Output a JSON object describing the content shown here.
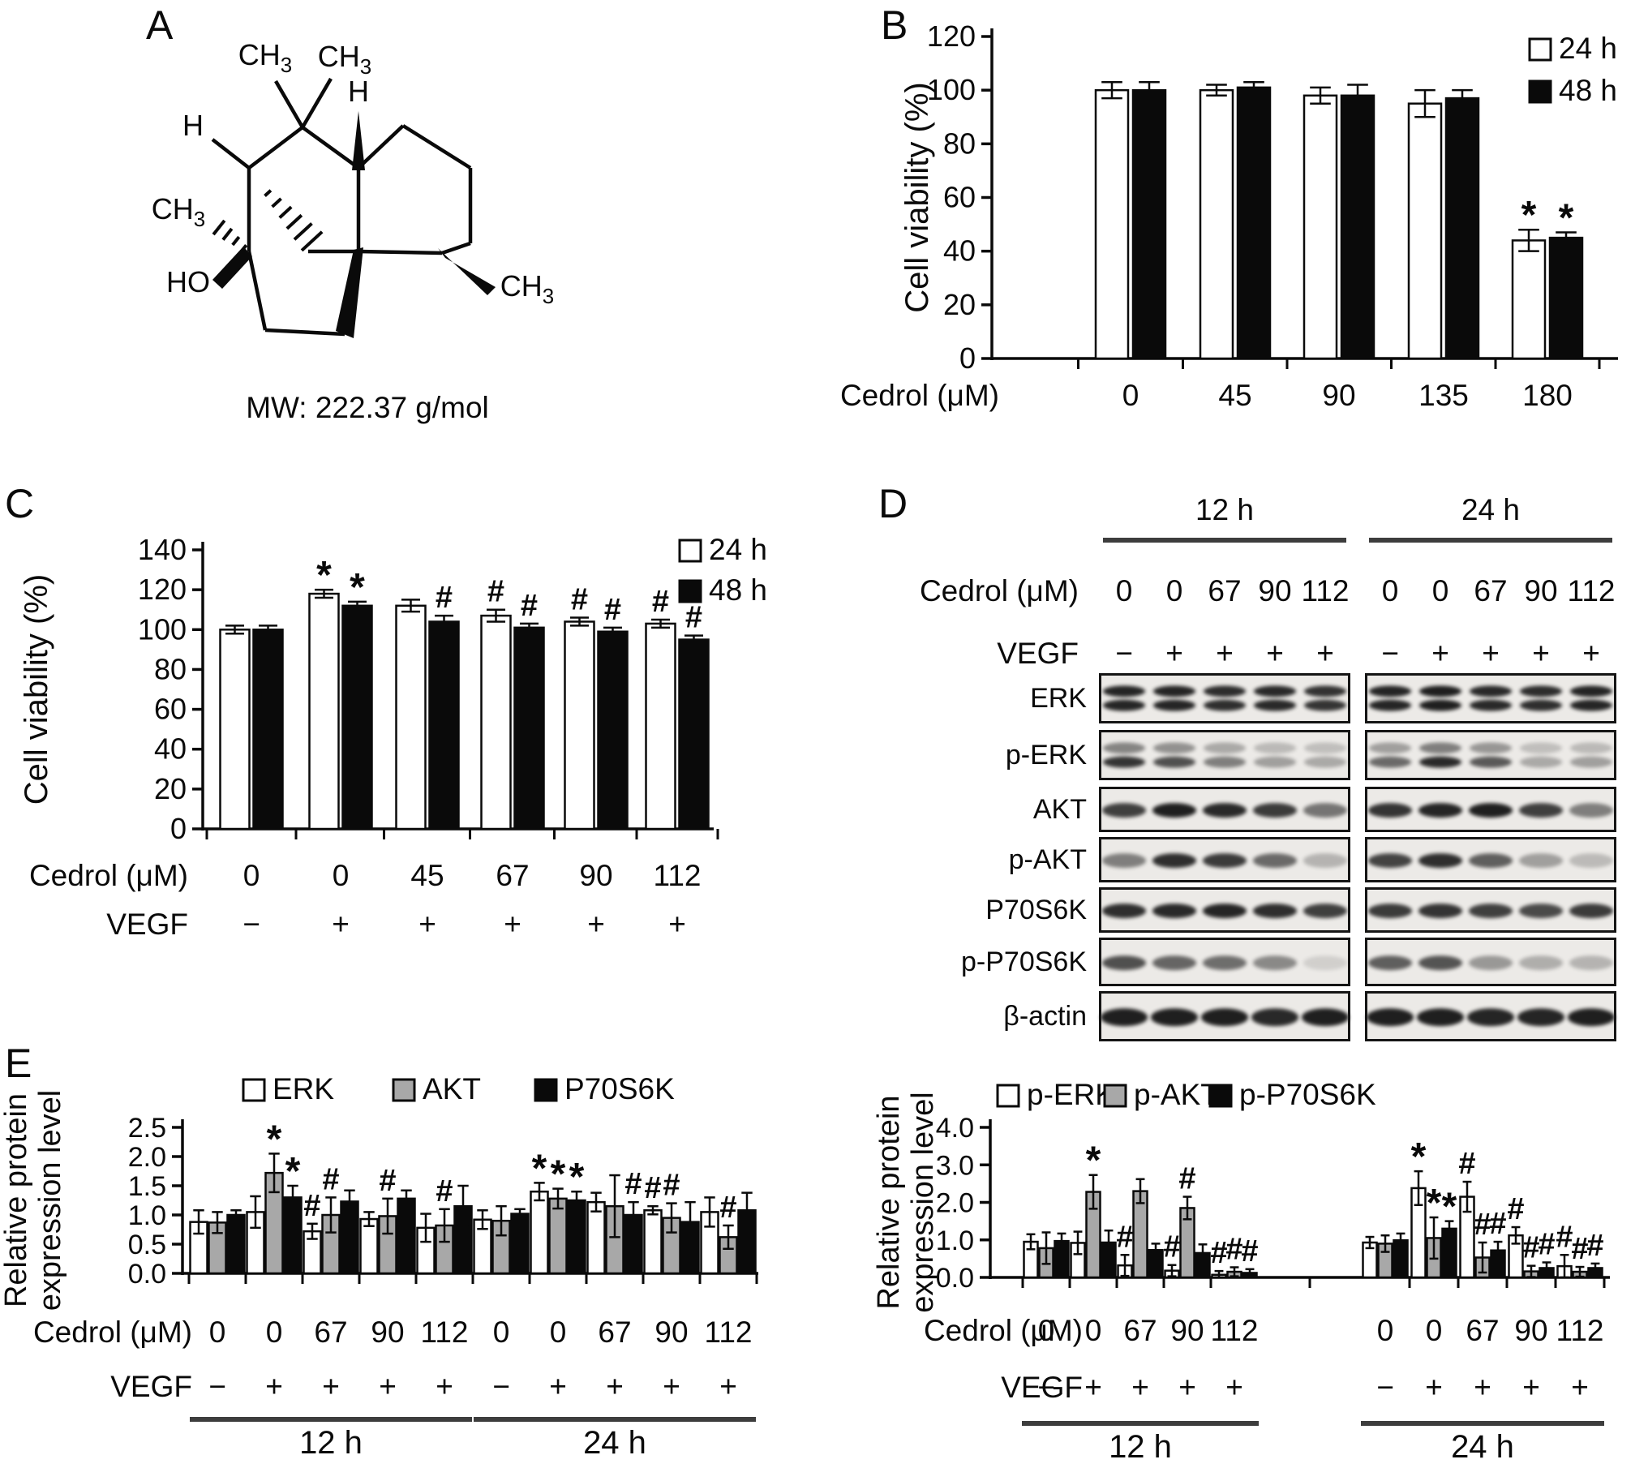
{
  "panel_labels": {
    "a": "A",
    "b": "B",
    "c": "C",
    "d": "D",
    "e": "E"
  },
  "panel_a": {
    "mw_text": "MW: 222.37 g/mol",
    "atom_labels": {
      "ch3_top_left": "CH3",
      "ch3_top_right": "CH3",
      "h_top": "H",
      "h_left": "H",
      "ch3_left": "CH3",
      "ho": "HO",
      "ch3_right": "CH3"
    }
  },
  "panel_d": {
    "time_headers": [
      "12 h",
      "24 h"
    ],
    "rows": [
      {
        "title": "Cedrol (μM)",
        "labels": [
          "0",
          "0",
          "67",
          "90",
          "112",
          "0",
          "0",
          "67",
          "90",
          "112"
        ]
      },
      {
        "title": "VEGF",
        "labels": [
          "−",
          "+",
          "+",
          "+",
          "+",
          "−",
          "+",
          "+",
          "+",
          "+"
        ]
      }
    ],
    "blots": [
      {
        "label": "ERK",
        "style": "double",
        "upper_scale": 0.95,
        "lanes": [
          [
            0.92,
            0.92,
            0.88,
            0.9,
            0.85
          ],
          [
            0.92,
            0.95,
            0.9,
            0.88,
            0.92
          ]
        ]
      },
      {
        "label": "p-ERK",
        "style": "double",
        "upper_scale": 0.5,
        "lanes": [
          [
            0.85,
            0.72,
            0.5,
            0.35,
            0.3
          ],
          [
            0.6,
            0.9,
            0.68,
            0.3,
            0.35
          ]
        ]
      },
      {
        "label": "AKT",
        "style": "single",
        "lanes": [
          [
            0.8,
            0.95,
            0.9,
            0.82,
            0.55
          ],
          [
            0.85,
            0.92,
            0.95,
            0.8,
            0.5
          ]
        ]
      },
      {
        "label": "p-AKT",
        "style": "single",
        "lanes": [
          [
            0.5,
            0.88,
            0.82,
            0.6,
            0.25
          ],
          [
            0.78,
            0.88,
            0.65,
            0.35,
            0.22
          ]
        ]
      },
      {
        "label": "P70S6K",
        "style": "single",
        "lanes": [
          [
            0.88,
            0.9,
            0.92,
            0.88,
            0.8
          ],
          [
            0.82,
            0.85,
            0.8,
            0.75,
            0.82
          ]
        ]
      },
      {
        "label": "p-P70S6K",
        "style": "single",
        "lanes": [
          [
            0.72,
            0.62,
            0.58,
            0.45,
            0.12
          ],
          [
            0.65,
            0.7,
            0.38,
            0.28,
            0.25
          ]
        ]
      },
      {
        "label": "β-actin",
        "style": "single",
        "thick": true,
        "lanes": [
          [
            0.95,
            0.95,
            0.95,
            0.9,
            0.95
          ],
          [
            0.95,
            0.95,
            0.92,
            0.92,
            0.95
          ]
        ]
      }
    ]
  },
  "chart_data": [
    {
      "id": "cell-viability-dose",
      "type": "bar",
      "title": "",
      "ylabel": "Cell viability (%)",
      "ylim": [
        0,
        120
      ],
      "yticks": [
        "0",
        "20",
        "40",
        "60",
        "80",
        "100",
        "120"
      ],
      "categories": [
        "0",
        "45",
        "90",
        "135",
        "180"
      ],
      "series": [
        {
          "name": "24 h",
          "color": "#ffffff"
        },
        {
          "name": "48 h",
          "color": "#0a0a0a"
        }
      ],
      "values": [
        [
          100,
          100,
          98,
          95,
          44
        ],
        [
          100,
          101,
          98,
          97,
          45
        ]
      ],
      "errors": [
        [
          3,
          2,
          3,
          5,
          4
        ],
        [
          3,
          2,
          4,
          3,
          2
        ]
      ],
      "symbols": [
        [
          "",
          "",
          "",
          "",
          "*"
        ],
        [
          "",
          "",
          "",
          "",
          "*"
        ]
      ],
      "rows": [
        {
          "title": "Cedrol (μM)",
          "labels": [
            "0",
            "45",
            "90",
            "135",
            "180"
          ]
        }
      ],
      "legend_position": "top-right"
    },
    {
      "id": "cell-viability-vegf",
      "type": "bar",
      "title": "",
      "ylabel": "Cell viability (%)",
      "ylim": [
        0,
        140
      ],
      "yticks": [
        "0",
        "20",
        "40",
        "60",
        "80",
        "100",
        "120",
        "140"
      ],
      "categories": [
        "0",
        "0",
        "45",
        "67",
        "90",
        "112"
      ],
      "series": [
        {
          "name": "24 h",
          "color": "#ffffff"
        },
        {
          "name": "48 h",
          "color": "#0a0a0a"
        }
      ],
      "values": [
        [
          100,
          118,
          112,
          107,
          104,
          103
        ],
        [
          100,
          112,
          104,
          101,
          99,
          95
        ]
      ],
      "errors": [
        [
          2,
          2,
          3,
          3,
          2,
          2
        ],
        [
          2,
          2,
          3,
          2,
          2,
          2
        ]
      ],
      "symbols": [
        [
          "",
          "*",
          "",
          "#",
          "#",
          "#"
        ],
        [
          "",
          "*",
          "#",
          "#",
          "#",
          "#"
        ]
      ],
      "rows": [
        {
          "title": "Cedrol (μM)",
          "labels": [
            "0",
            "0",
            "45",
            "67",
            "90",
            "112"
          ]
        },
        {
          "title": "VEGF",
          "labels": [
            "−",
            "+",
            "+",
            "+",
            "+",
            "+"
          ]
        }
      ],
      "legend_position": "top-right"
    },
    {
      "id": "total-protein-expression",
      "type": "bar",
      "title": "",
      "ylabel_lines": [
        "Relative protein",
        "expression level"
      ],
      "ylim": [
        0,
        2.5
      ],
      "yticks": [
        "0.0",
        "0.5",
        "1.0",
        "1.5",
        "2.0",
        "2.5"
      ],
      "categories": [
        "0",
        "0",
        "67",
        "90",
        "112",
        "0",
        "0",
        "67",
        "90",
        "112"
      ],
      "series": [
        {
          "name": "ERK",
          "color": "#ffffff"
        },
        {
          "name": "AKT",
          "color": "#a8a8a8"
        },
        {
          "name": "P70S6K",
          "color": "#0a0a0a"
        }
      ],
      "values": [
        [
          0.88,
          1.05,
          0.72,
          0.93,
          0.78,
          0.92,
          1.4,
          1.22,
          1.08,
          1.05
        ],
        [
          0.87,
          1.72,
          1.0,
          0.98,
          0.82,
          0.9,
          1.28,
          1.15,
          0.95,
          0.62
        ],
        [
          1.0,
          1.3,
          1.23,
          1.28,
          1.15,
          1.02,
          1.25,
          1.0,
          0.88,
          1.08
        ]
      ],
      "errors": [
        [
          0.2,
          0.27,
          0.13,
          0.12,
          0.24,
          0.16,
          0.15,
          0.16,
          0.07,
          0.25
        ],
        [
          0.18,
          0.33,
          0.3,
          0.3,
          0.28,
          0.25,
          0.17,
          0.53,
          0.25,
          0.2
        ],
        [
          0.08,
          0.2,
          0.19,
          0.14,
          0.35,
          0.08,
          0.15,
          0.22,
          0.34,
          0.3
        ]
      ],
      "symbols": [
        [
          "",
          "",
          "#",
          "",
          "",
          "",
          "*",
          "",
          "#",
          ""
        ],
        [
          "",
          "*",
          "#",
          "#",
          "#",
          "",
          "*",
          "",
          "#",
          "#"
        ],
        [
          "",
          "*",
          "",
          "",
          "",
          "",
          "*",
          "#",
          "",
          ""
        ]
      ],
      "rows": [
        {
          "title": "Cedrol (μM)",
          "labels": [
            "0",
            "0",
            "67",
            "90",
            "112",
            "0",
            "0",
            "67",
            "90",
            "112"
          ]
        },
        {
          "title": "VEGF",
          "labels": [
            "−",
            "+",
            "+",
            "+",
            "+",
            "−",
            "+",
            "+",
            "+",
            "+"
          ]
        }
      ],
      "spans": [
        {
          "label": "12 h",
          "from": 0,
          "to": 4
        },
        {
          "label": "24 h",
          "from": 5,
          "to": 9
        }
      ],
      "legend_position": "top-center"
    },
    {
      "id": "phospho-protein-expression",
      "type": "bar",
      "title": "",
      "ylabel_lines": [
        "Relative protein",
        "expression level"
      ],
      "ylim": [
        0,
        4
      ],
      "yticks": [
        "0.0",
        "1.0",
        "2.0",
        "3.0",
        "4.0"
      ],
      "categories": [
        "0",
        "0",
        "67",
        "90",
        "112",
        "0",
        "0",
        "67",
        "90",
        "112"
      ],
      "series": [
        {
          "name": "p-ERK",
          "color": "#ffffff"
        },
        {
          "name": "p-AKT",
          "color": "#a8a8a8"
        },
        {
          "name": "p-P70S6K",
          "color": "#0a0a0a"
        }
      ],
      "values": [
        [
          0.95,
          0.92,
          0.32,
          0.18,
          0.07,
          0.93,
          2.38,
          2.15,
          1.12,
          0.3
        ],
        [
          0.78,
          2.28,
          2.3,
          1.85,
          0.15,
          0.9,
          1.05,
          0.53,
          0.16,
          0.15
        ],
        [
          0.97,
          0.93,
          0.73,
          0.65,
          0.12,
          0.99,
          1.3,
          0.72,
          0.25,
          0.25
        ]
      ],
      "errors": [
        [
          0.2,
          0.3,
          0.28,
          0.15,
          0.1,
          0.15,
          0.45,
          0.4,
          0.22,
          0.3
        ],
        [
          0.42,
          0.45,
          0.32,
          0.3,
          0.12,
          0.22,
          0.55,
          0.4,
          0.15,
          0.13
        ],
        [
          0.2,
          0.32,
          0.17,
          0.23,
          0.1,
          0.18,
          0.2,
          0.23,
          0.15,
          0.12
        ]
      ],
      "symbols": [
        [
          "",
          "",
          "#",
          "#",
          "#",
          "",
          "*",
          "#",
          "#",
          "#"
        ],
        [
          "",
          "*",
          "",
          "#",
          "#",
          "",
          "*",
          "#",
          "#",
          "#"
        ],
        [
          "",
          "",
          "",
          "",
          "#",
          "",
          "*",
          "#",
          "#",
          "#"
        ]
      ],
      "rows": [
        {
          "title": "Cedrol (μM)",
          "labels": [
            "0",
            "0",
            "67",
            "90",
            "112",
            "0",
            "0",
            "67",
            "90",
            "112"
          ]
        },
        {
          "title": "VEGF",
          "labels": [
            "−",
            "+",
            "+",
            "+",
            "+",
            "−",
            "+",
            "+",
            "+",
            "+"
          ]
        }
      ],
      "spans": [
        {
          "label": "12 h",
          "from": 0,
          "to": 4
        },
        {
          "label": "24 h",
          "from": 5,
          "to": 9
        }
      ],
      "legend_position": "top-center"
    }
  ]
}
